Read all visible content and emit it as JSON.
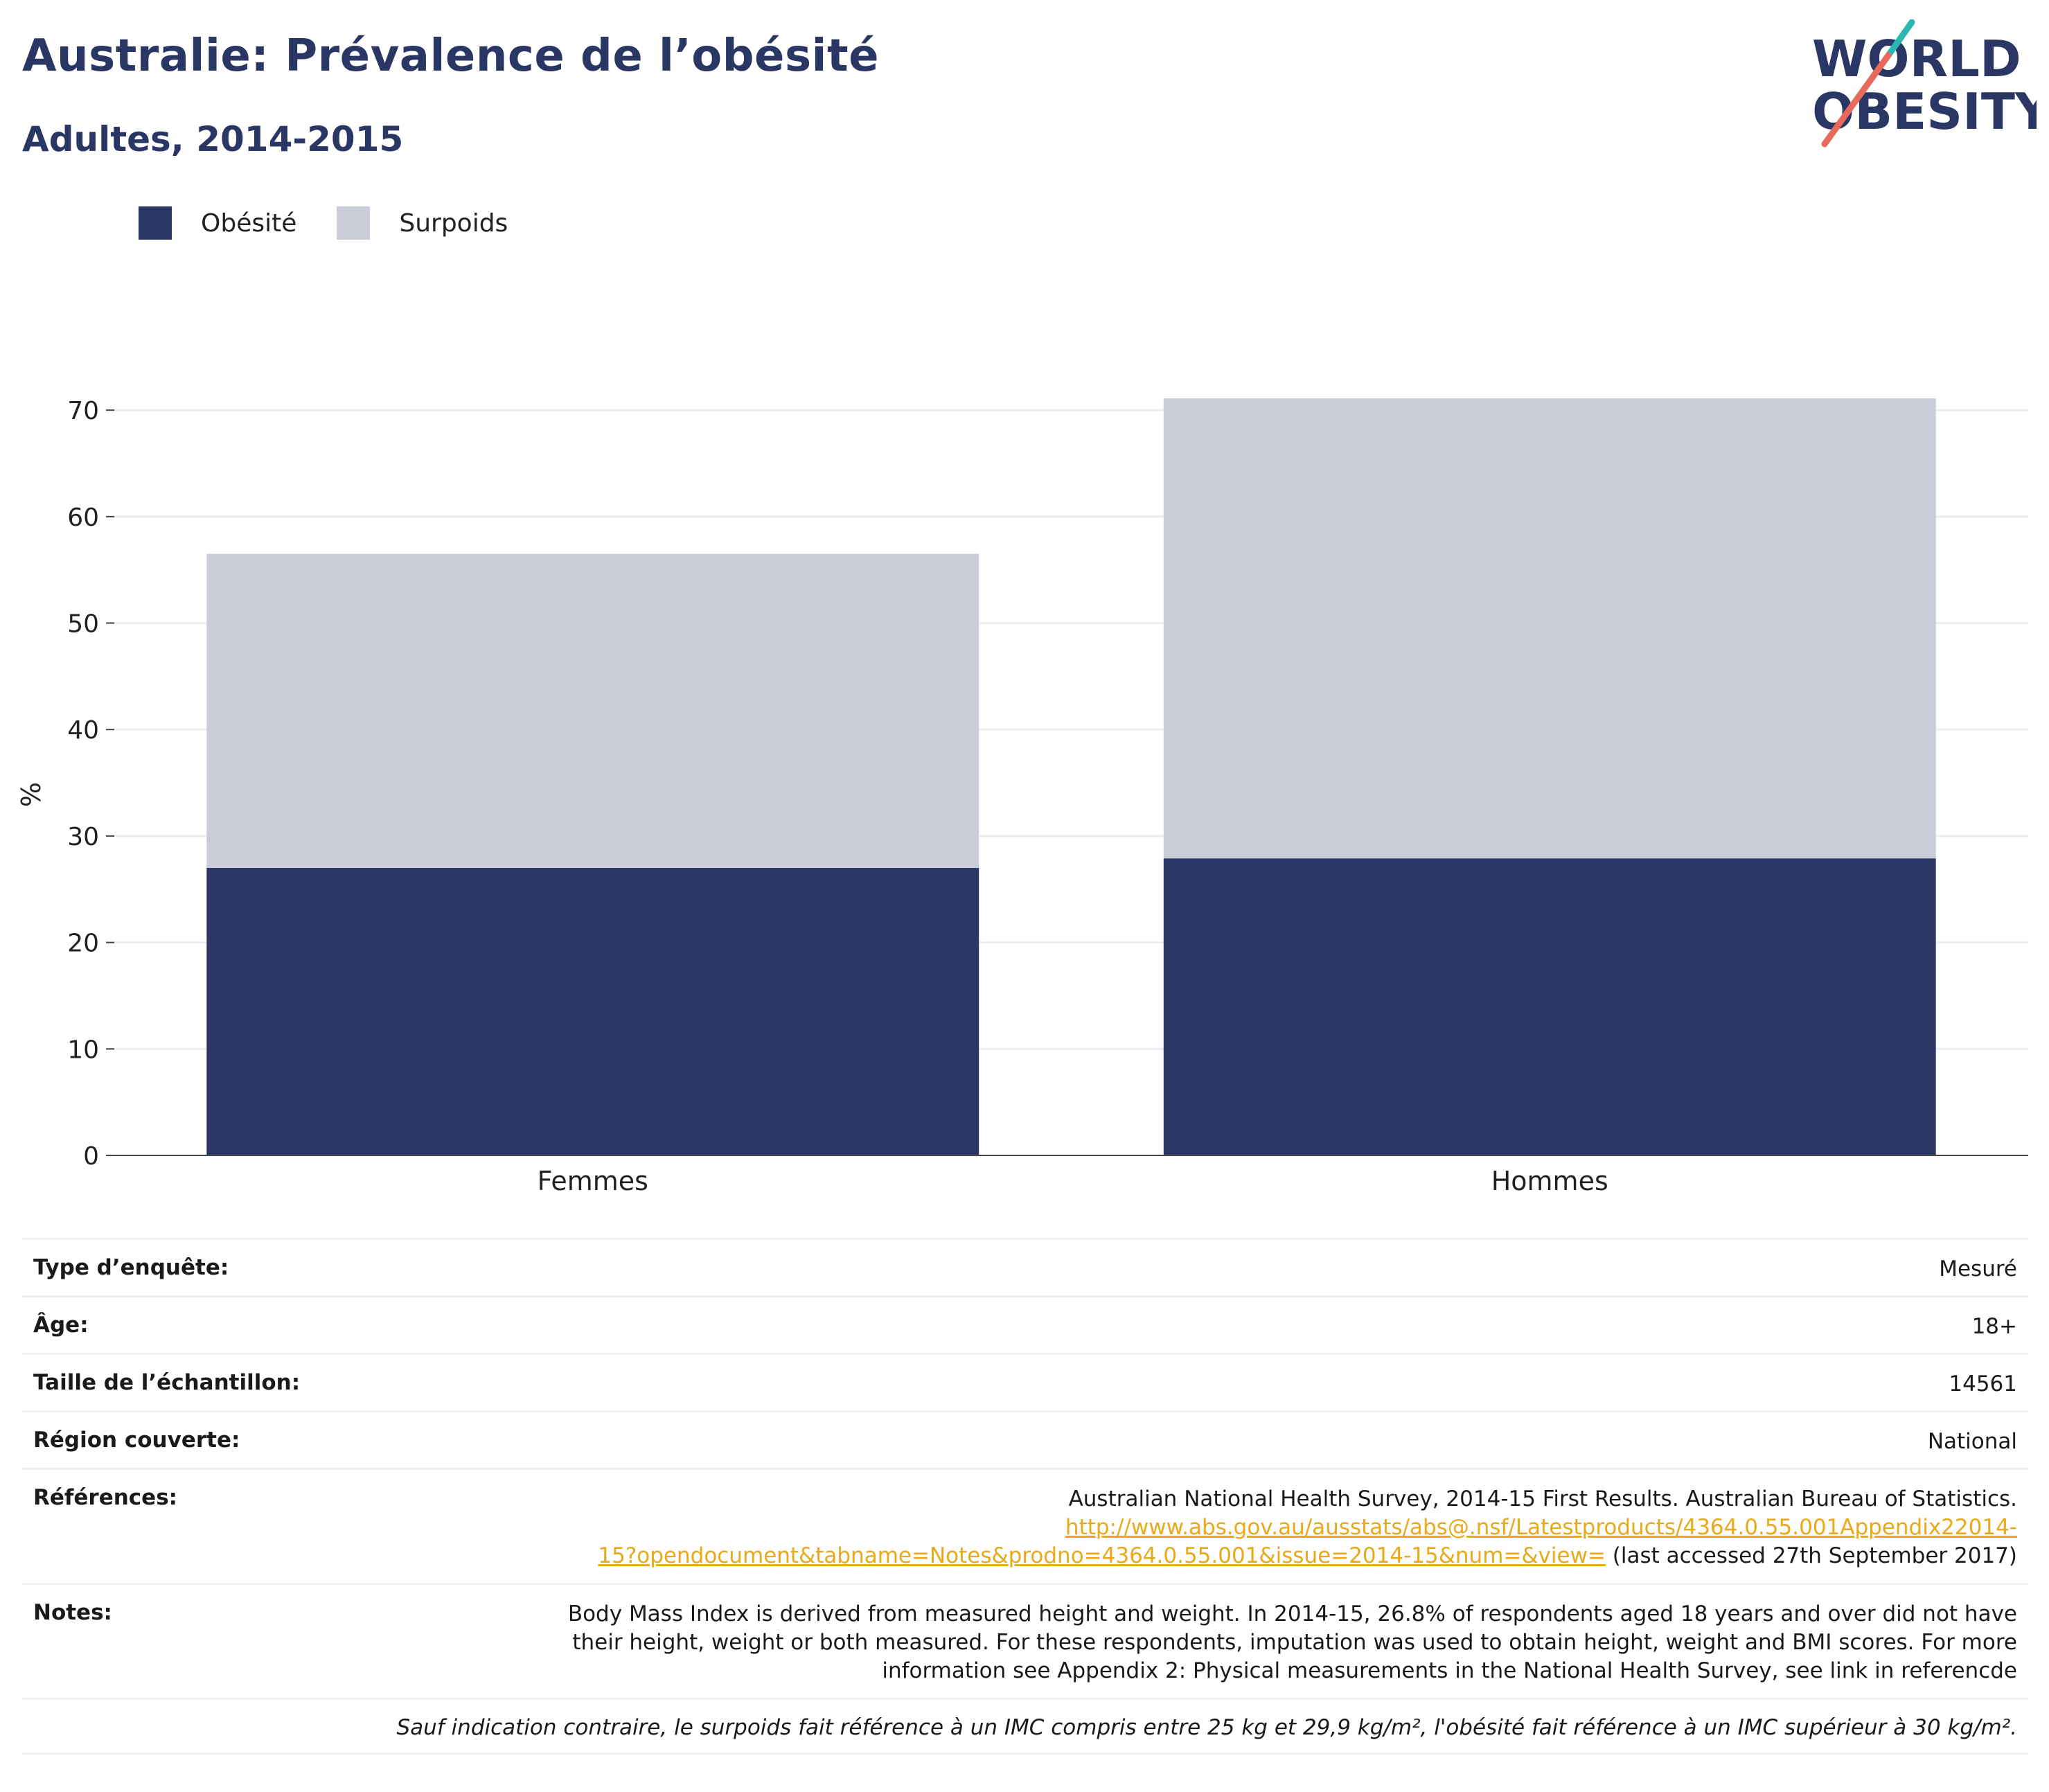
{
  "title": "Australie: Prévalence de l’obésité",
  "subtitle": "Adultes, 2014-2015",
  "logo": {
    "line1": "WORLD",
    "line2": "OBESITY",
    "accent_teal": "#2bb6b0",
    "accent_coral": "#e86a5a",
    "text_color": "#2a3663"
  },
  "colors": {
    "obesity": "#2a3663",
    "overweight": "#cacdd8",
    "link": "#e8a91a"
  },
  "chart_data": {
    "type": "bar",
    "stacked": true,
    "categories": [
      "Femmes",
      "Hommes"
    ],
    "series": [
      {
        "name": "Obésité",
        "values": [
          27.0,
          27.9
        ],
        "color": "#2a3663"
      },
      {
        "name": "Surpoids",
        "values": [
          29.5,
          43.2
        ],
        "color": "#cacdd8"
      }
    ],
    "ylabel": "%",
    "yticks": [
      0,
      10,
      20,
      30,
      40,
      50,
      60,
      70
    ],
    "ylim": [
      0,
      73
    ],
    "grid": true,
    "legend": "top-left"
  },
  "info": {
    "survey_type": {
      "label": "Type d’enquête:",
      "value": "Mesuré"
    },
    "age": {
      "label": "Âge:",
      "value": "18+"
    },
    "sample_size": {
      "label": "Taille de l’échantillon:",
      "value": "14561"
    },
    "region": {
      "label": "Région couverte:",
      "value": "National"
    },
    "references": {
      "label": "Références:",
      "text": "Australian National Health Survey, 2014-15 First Results. Australian Bureau of Statistics.",
      "link_part1": "http://www.abs.gov.au/ausstats/abs@.nsf/Latestproducts/4364.0.55.001Appendix22014-",
      "link_part2": "15?opendocument&tabname=Notes&prodno=4364.0.55.001&issue=2014-15&num=&view=",
      "accessed": " (last accessed 27th September 2017)"
    },
    "notes": {
      "label": "Notes:",
      "line1": "Body Mass Index is derived from measured height and weight. In 2014-15, 26.8% of respondents aged 18 years and over did not have",
      "line2": "their height, weight or both measured. For these respondents, imputation was used to obtain height, weight and BMI scores. For more",
      "line3": "information see Appendix 2: Physical measurements in the National Health Survey, see link in referencde"
    },
    "footnote": "Sauf indication contraire, le surpoids fait référence à un IMC compris entre 25 kg et 29,9 kg/m², l'obésité fait référence à un IMC supérieur à 30 kg/m²."
  }
}
